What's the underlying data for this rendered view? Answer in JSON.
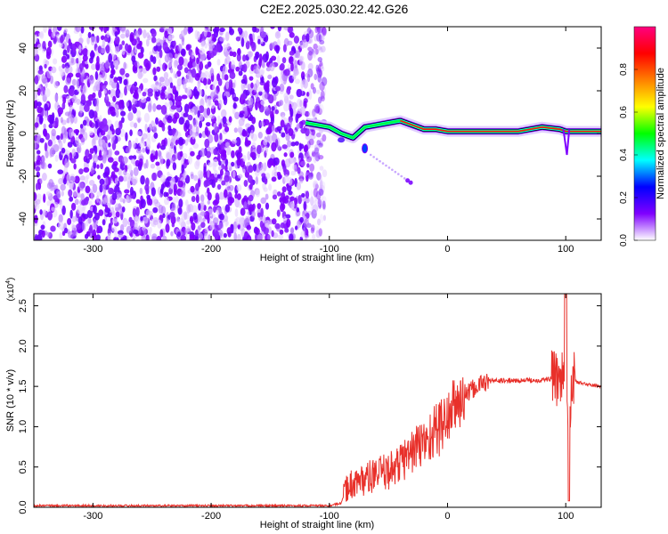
{
  "title": "C2E2.2025.030.22.42.G26",
  "chart_data": [
    {
      "type": "heatmap",
      "title": "C2E2.2025.030.22.42.G26",
      "xlabel": "Height of straight line (km)",
      "ylabel": "Frequency (Hz)",
      "xlim": [
        -350,
        130
      ],
      "ylim": [
        -50,
        50
      ],
      "x_ticks": [
        "-300",
        "-200",
        "-100",
        "0",
        "100"
      ],
      "y_ticks": [
        "-40",
        "-20",
        "0",
        "20",
        "40"
      ],
      "noise_region_x": [
        -350,
        -110
      ],
      "signal_ridge": {
        "x": [
          -120,
          -110,
          -100,
          -90,
          -80,
          -70,
          -60,
          -50,
          -40,
          -30,
          -20,
          -10,
          0,
          20,
          40,
          60,
          80,
          95,
          100,
          130
        ],
        "frequency": [
          5,
          4,
          3,
          0,
          -2,
          3,
          4,
          5,
          6,
          4,
          2,
          2,
          1,
          1,
          1,
          1,
          3,
          2,
          1,
          1
        ]
      },
      "colorbar": {
        "label": "Normalized spectral amplitude",
        "ticks": [
          "0.0",
          "0.2",
          "0.4",
          "0.6",
          "0.8"
        ],
        "range": [
          0,
          1
        ],
        "colors": [
          "#ffffff",
          "#7f00ff",
          "#0000ff",
          "#00ffff",
          "#00ff00",
          "#ffff00",
          "#ff8000",
          "#ff0000",
          "#ff0080"
        ]
      }
    },
    {
      "type": "line",
      "xlabel": "Height of straight line (km)",
      "ylabel": "SNR (10 * v/v)",
      "scale_label": "(x10",
      "scale_exp": "4",
      "xlim": [
        -350,
        130
      ],
      "ylim": [
        0,
        2.65
      ],
      "x_ticks": [
        "-300",
        "-200",
        "-100",
        "0",
        "100"
      ],
      "y_ticks": [
        "0.0",
        "0.5",
        "1.0",
        "1.5",
        "2.0",
        "2.5"
      ],
      "line_color": "#e8302a",
      "series": [
        {
          "x": [
            -350,
            -300,
            -250,
            -200,
            -150,
            -100,
            -90,
            -85,
            -80,
            -70,
            -60,
            -50,
            -40,
            -30,
            -20,
            -10,
            0,
            5,
            10,
            20,
            30,
            40,
            60,
            80,
            90,
            95,
            100,
            102,
            105,
            110,
            120,
            130
          ],
          "values": [
            0.02,
            0.02,
            0.02,
            0.02,
            0.02,
            0.02,
            0.05,
            0.25,
            0.3,
            0.35,
            0.4,
            0.45,
            0.55,
            0.7,
            0.8,
            0.95,
            1.1,
            1.25,
            1.3,
            1.45,
            1.55,
            1.57,
            1.57,
            1.58,
            1.6,
            1.6,
            1.9,
            0.6,
            1.6,
            1.55,
            1.52,
            1.5
          ]
        }
      ]
    }
  ]
}
